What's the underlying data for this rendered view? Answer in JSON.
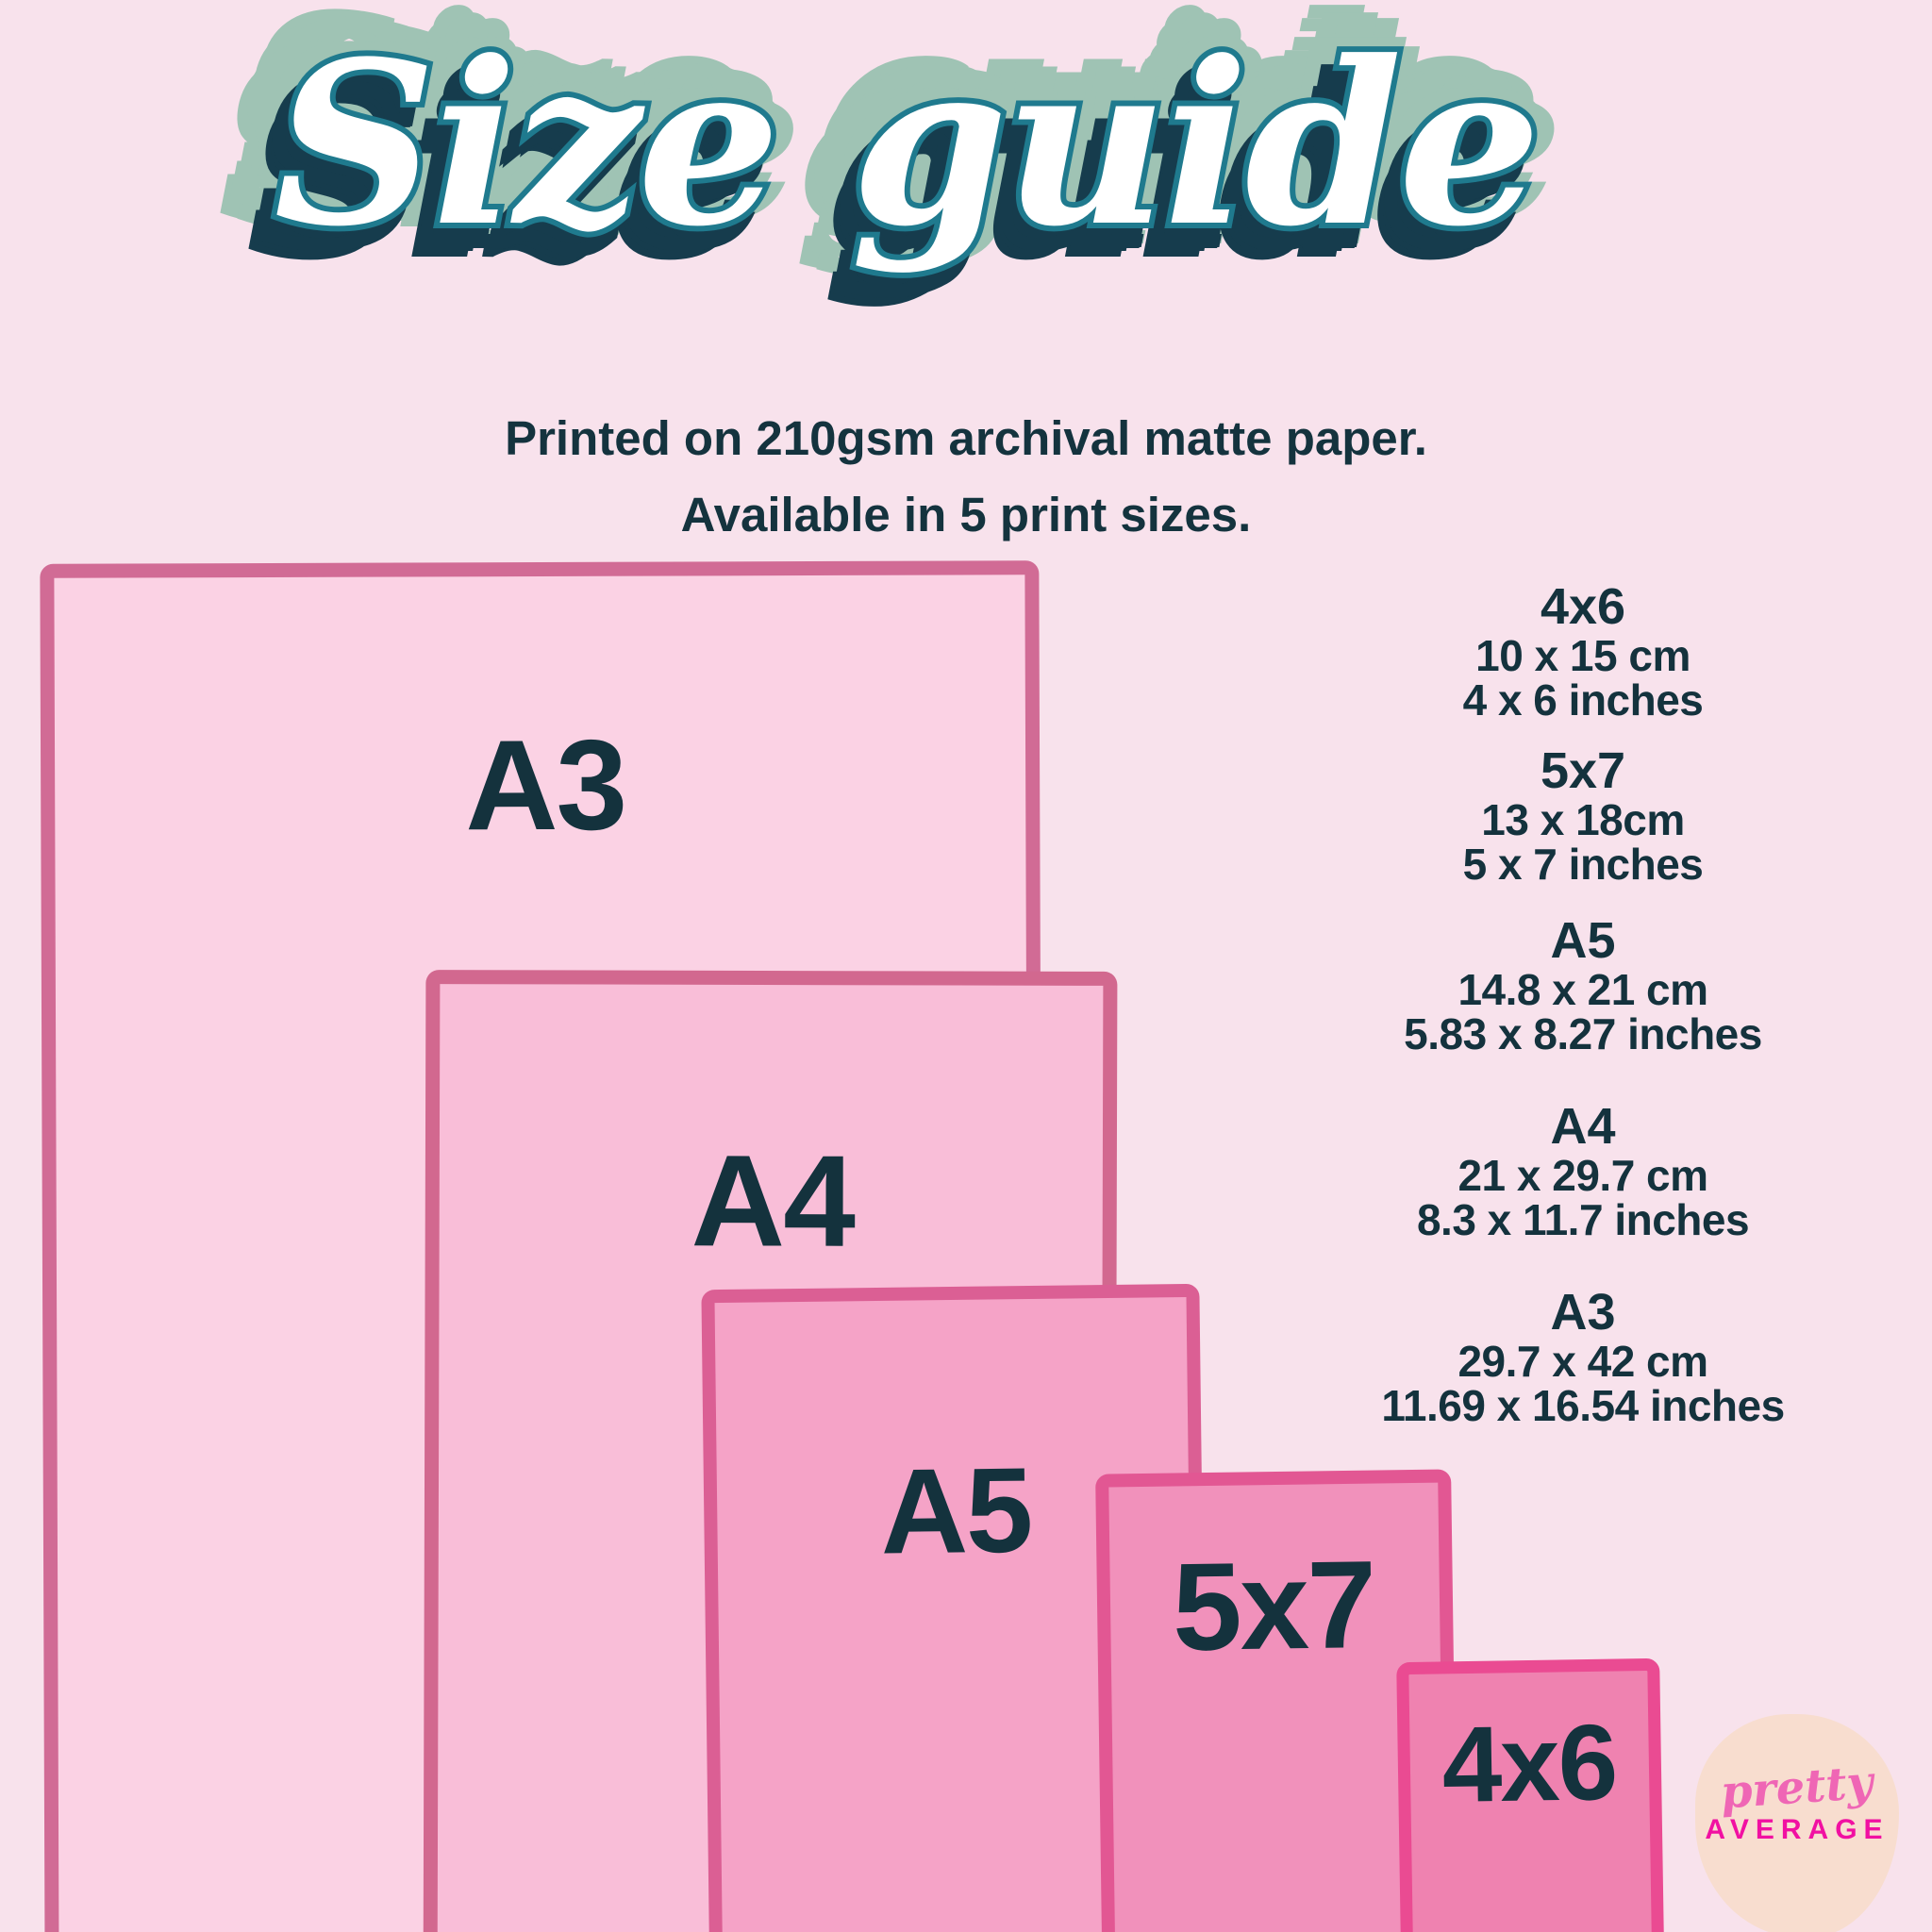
{
  "title": {
    "text": "Size guide"
  },
  "subtitle": {
    "line1": "Printed on 210gsm archival matte paper.",
    "line2": "Available in 5 print sizes."
  },
  "prints": [
    {
      "label": "A3",
      "fill": "#fbd2e4",
      "border": "#d16b95"
    },
    {
      "label": "A4",
      "fill": "#f9bed8",
      "border": "#d2688f"
    },
    {
      "label": "A5",
      "fill": "#f5a3c7",
      "border": "#db5f94"
    },
    {
      "label": "5x7",
      "fill": "#f191bb",
      "border": "#e25793"
    },
    {
      "label": "4x6",
      "fill": "#ef82b0",
      "border": "#ea4b92"
    }
  ],
  "size_list": [
    {
      "label": "4x6",
      "cm": "10 x 15 cm",
      "inches": "4 x 6 inches"
    },
    {
      "label": "5x7",
      "cm": "13 x 18cm",
      "inches": "5 x 7 inches"
    },
    {
      "label": "A5",
      "cm": "14.8 x 21 cm",
      "inches": "5.83 x 8.27 inches"
    },
    {
      "label": "A4",
      "cm": "21 x 29.7 cm",
      "inches": "8.3 x 11.7 inches"
    },
    {
      "label": "A3",
      "cm": "29.7 x 42 cm",
      "inches": "11.69 x 16.54 inches"
    }
  ],
  "logo": {
    "line1": "pretty",
    "line2": "AVERAGE"
  },
  "colors": {
    "background": "#f8e2ec",
    "text_dark": "#14323d",
    "title_teal": "#1f7a8e",
    "title_navy": "#163c4d",
    "title_sage": "#9fc3b4",
    "logo_blob": "#f8ddcf",
    "logo_pretty": "#ef66b5",
    "logo_average": "#f110a2"
  }
}
